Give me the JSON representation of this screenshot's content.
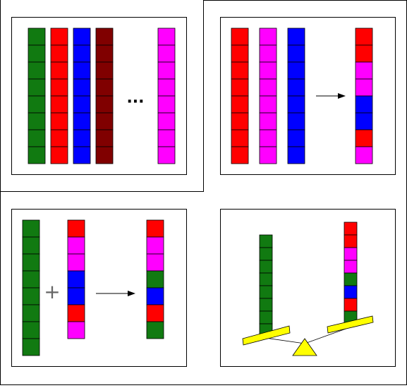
{
  "ellipsis": "···",
  "plus_sign": "+",
  "colors": {
    "green": "#117a11",
    "red": "#ff0000",
    "blue": "#0000ff",
    "maroon": "#800000",
    "magenta": "#ff00ff",
    "yellow": "#ffff00",
    "outline": "#000000",
    "background": "#ffffff"
  },
  "panels": [
    {
      "id": "all-colors",
      "rods": [
        {
          "color": "green",
          "units": 8
        },
        {
          "color": "red",
          "units": 8
        },
        {
          "color": "blue",
          "units": 8
        },
        {
          "color": "maroon",
          "units": 8
        },
        {
          "color": "magenta",
          "units": 8
        }
      ]
    },
    {
      "id": "mix-three",
      "inputs": [
        {
          "color": "red",
          "units": 8
        },
        {
          "color": "magenta",
          "units": 8
        },
        {
          "color": "blue",
          "units": 8
        }
      ],
      "result_stack": [
        "red",
        "red",
        "magenta",
        "magenta",
        "blue",
        "blue",
        "red",
        "magenta"
      ]
    },
    {
      "id": "addition",
      "left_rod": {
        "color": "green",
        "units": 8
      },
      "right_stack": [
        "red",
        "magenta",
        "magenta",
        "blue",
        "blue",
        "red",
        "magenta"
      ],
      "result_stack": [
        "red",
        "magenta",
        "magenta",
        "green",
        "blue",
        "red",
        "green"
      ]
    },
    {
      "id": "balance",
      "left_rod": {
        "color": "green",
        "units": 8
      },
      "right_stack": [
        "red",
        "red",
        "magenta",
        "magenta",
        "green",
        "blue",
        "red",
        "green"
      ]
    }
  ]
}
